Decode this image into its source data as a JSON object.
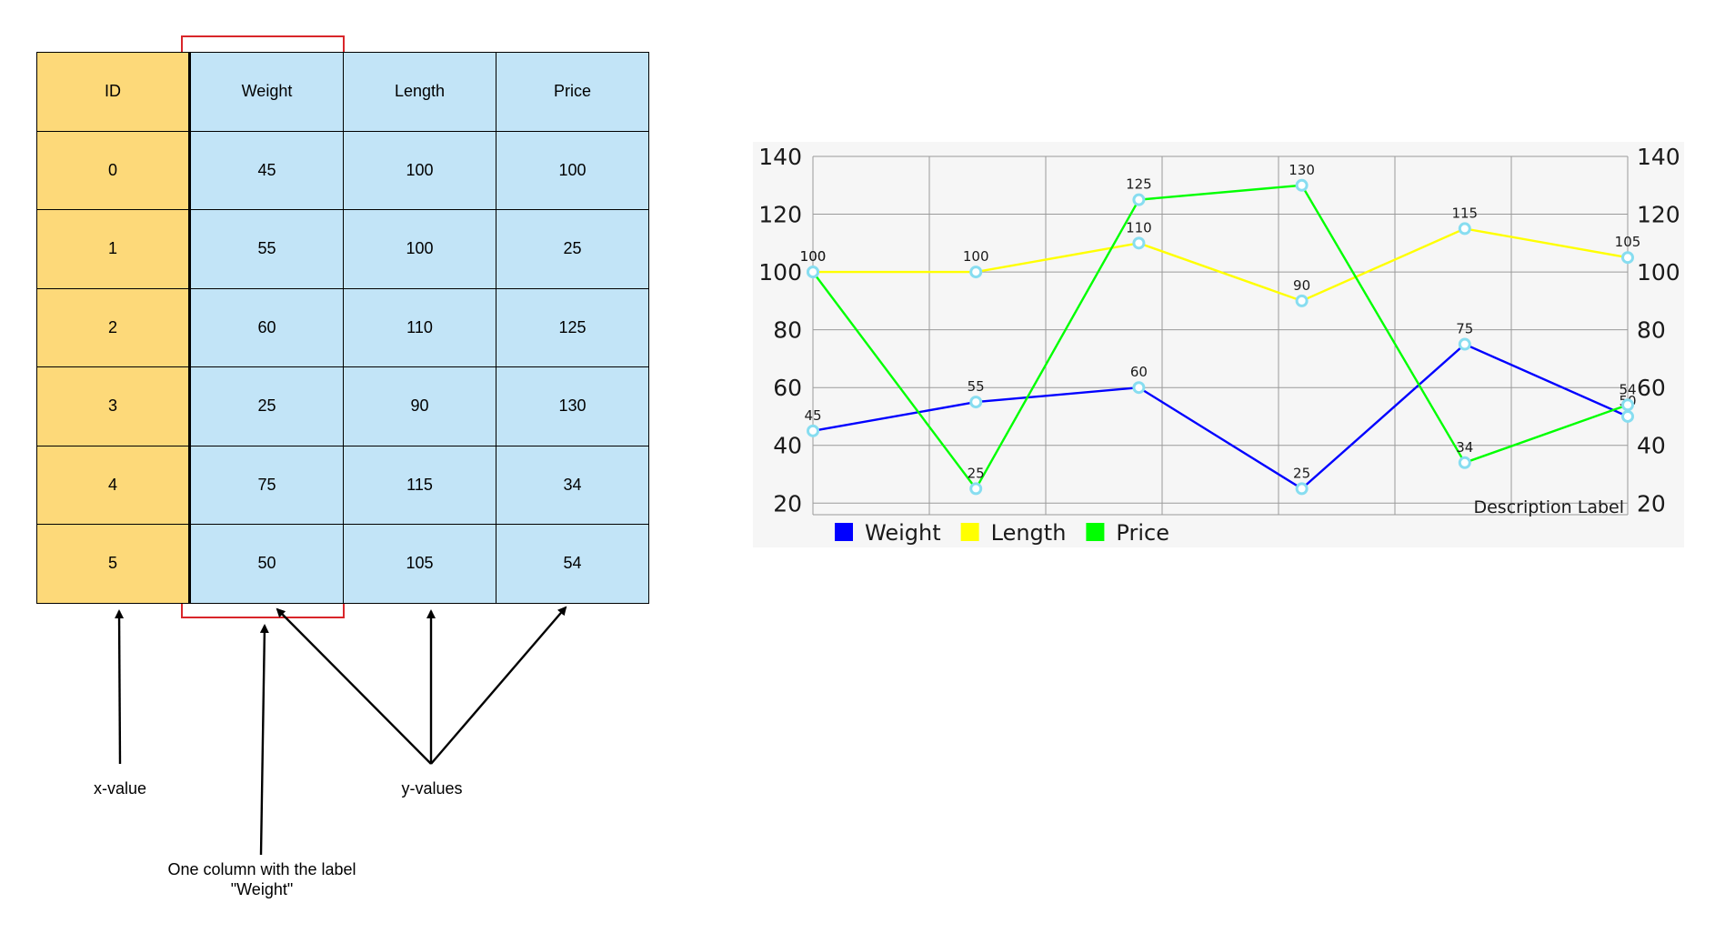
{
  "table": {
    "headers": [
      "ID",
      "Weight",
      "Length",
      "Price"
    ],
    "rows": [
      [
        "0",
        "45",
        "100",
        "100"
      ],
      [
        "1",
        "55",
        "100",
        "25"
      ],
      [
        "2",
        "60",
        "110",
        "125"
      ],
      [
        "3",
        "25",
        "90",
        "130"
      ],
      [
        "4",
        "75",
        "115",
        "34"
      ],
      [
        "5",
        "50",
        "105",
        "54"
      ]
    ],
    "colors": {
      "x_column": "#fdd979",
      "y_columns": "#c2e4f7",
      "highlight": "#d9262a"
    }
  },
  "annotations": {
    "x_value": "x-value",
    "y_values": "y-values",
    "column_note_line1": "One column with the label",
    "column_note_line2": "\"Weight\""
  },
  "chart_data": {
    "type": "line",
    "x": [
      0,
      1,
      2,
      3,
      4,
      5
    ],
    "series": [
      {
        "name": "Weight",
        "color": "#0000ff",
        "values": [
          45,
          55,
          60,
          25,
          75,
          50
        ]
      },
      {
        "name": "Length",
        "color": "#ffff00",
        "values": [
          100,
          100,
          110,
          90,
          115,
          105
        ]
      },
      {
        "name": "Price",
        "color": "#00ff00",
        "values": [
          100,
          25,
          125,
          130,
          34,
          54
        ]
      }
    ],
    "left_axis_ticks": [
      "140",
      "120",
      "100",
      "80",
      "60",
      "40",
      "20"
    ],
    "right_axis_ticks": [
      "140",
      "120",
      "100",
      "80",
      "60",
      "40",
      "20"
    ],
    "ylim": [
      16,
      140
    ],
    "grid": true,
    "point_marker_color": "#87ddf0",
    "legend_position": "bottom-left",
    "description": "Description Label"
  }
}
